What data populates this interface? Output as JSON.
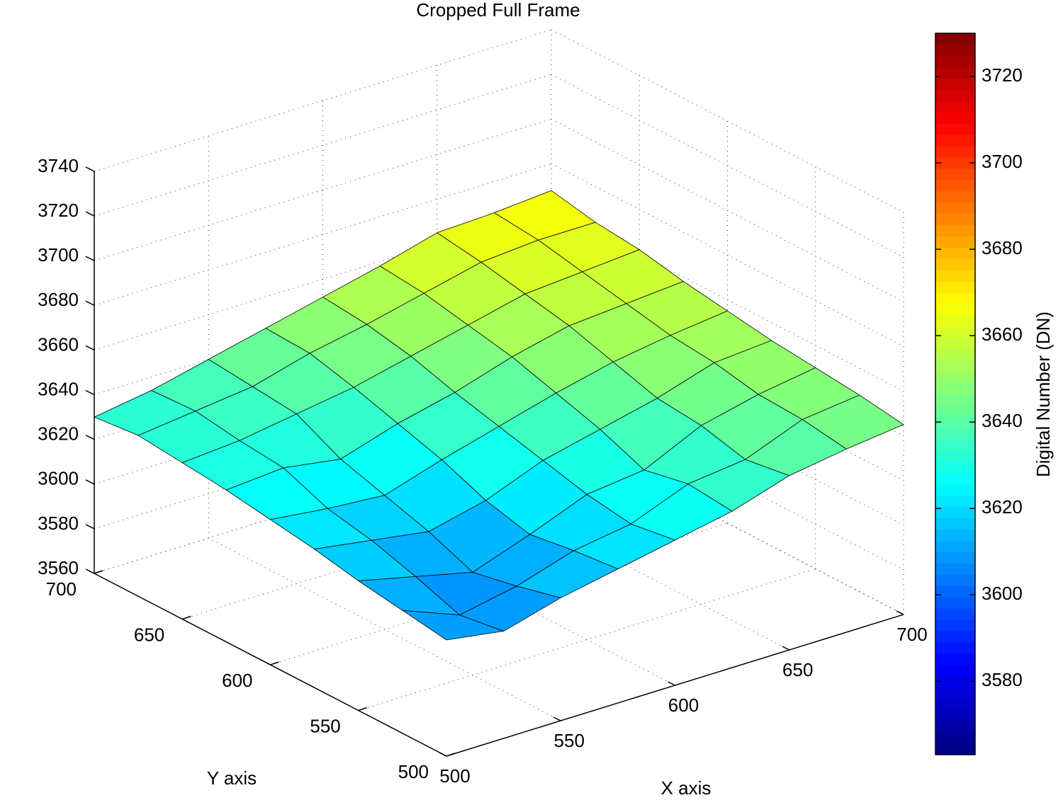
{
  "chart_data": {
    "type": "surface",
    "title": "Cropped Full Frame",
    "x_label": "X axis",
    "y_label": "Y axis",
    "x": [
      500,
      525,
      550,
      575,
      600,
      625,
      650,
      675,
      700
    ],
    "y": [
      500,
      525,
      550,
      575,
      600,
      625,
      650,
      675,
      700
    ],
    "z": [
      [
        3612,
        3608,
        3615,
        3620,
        3625,
        3630,
        3638,
        3642,
        3645
      ],
      [
        3615,
        3605,
        3610,
        3618,
        3622,
        3632,
        3635,
        3645,
        3648
      ],
      [
        3618,
        3612,
        3606,
        3615,
        3625,
        3628,
        3640,
        3646,
        3650
      ],
      [
        3622,
        3618,
        3614,
        3620,
        3630,
        3636,
        3642,
        3650,
        3652
      ],
      [
        3625,
        3622,
        3620,
        3628,
        3635,
        3642,
        3648,
        3652,
        3655
      ],
      [
        3628,
        3630,
        3626,
        3634,
        3640,
        3648,
        3654,
        3656,
        3658
      ],
      [
        3630,
        3632,
        3636,
        3640,
        3646,
        3652,
        3658,
        3660,
        3662
      ],
      [
        3632,
        3635,
        3638,
        3645,
        3650,
        3656,
        3662,
        3664,
        3664
      ],
      [
        3630,
        3634,
        3640,
        3646,
        3652,
        3658,
        3665,
        3666,
        3668
      ]
    ],
    "xlim": [
      500,
      700
    ],
    "xticks": [
      500,
      550,
      600,
      650,
      700
    ],
    "ylim": [
      500,
      700
    ],
    "yticks": [
      500,
      550,
      600,
      650,
      700
    ],
    "zlim": [
      3560,
      3740
    ],
    "zticks": [
      3560,
      3580,
      3600,
      3620,
      3640,
      3660,
      3680,
      3700,
      3720,
      3740
    ],
    "grid": true,
    "colormap": "jet",
    "colorbar": {
      "label": "Digital Number (DN)",
      "clim": [
        3563,
        3730
      ],
      "ticks": [
        3580,
        3600,
        3620,
        3640,
        3660,
        3680,
        3700,
        3720
      ]
    }
  }
}
